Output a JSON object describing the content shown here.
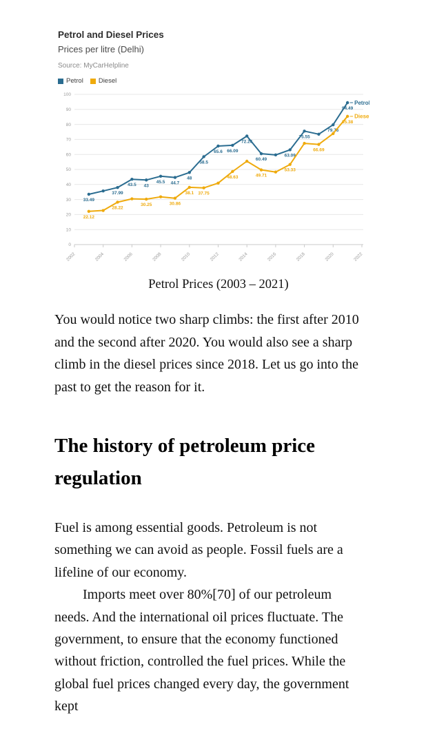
{
  "chart": {
    "title": "Petrol and Diesel Prices",
    "subtitle": "Prices per litre (Delhi)",
    "source": "Source: MyCarHelpline",
    "legend": [
      {
        "label": "Petrol",
        "color": "#2a6c90"
      },
      {
        "label": "Diesel",
        "color": "#efaa0c"
      }
    ]
  },
  "chart_data": {
    "type": "line",
    "x": [
      2003,
      2004,
      2005,
      2006,
      2007,
      2008,
      2009,
      2010,
      2011,
      2012,
      2013,
      2014,
      2015,
      2016,
      2017,
      2018,
      2019,
      2020,
      2021
    ],
    "series": [
      {
        "name": "Petrol",
        "color": "#2a6c90",
        "values": [
          33.49,
          35.7,
          37.99,
          43.5,
          43,
          45.5,
          44.7,
          48,
          58.5,
          65.6,
          66.09,
          72.26,
          60.49,
          59.7,
          63.09,
          75.55,
          73.5,
          79.76,
          94.49
        ],
        "labels": [
          "33.49",
          null,
          "37.99",
          "43.5",
          "43",
          "45.5",
          "44.7",
          "48",
          "58.5",
          "65.6",
          "66.09",
          "72.26",
          "60.49",
          null,
          "63.09",
          "75.55",
          null,
          "79.76",
          "94.49"
        ]
      },
      {
        "name": "Diesel",
        "color": "#efaa0c",
        "values": [
          22.12,
          22.7,
          28.22,
          30.45,
          30.25,
          31.8,
          30.86,
          38.1,
          37.75,
          40.9,
          48.63,
          55.5,
          49.71,
          48.3,
          53.33,
          67.4,
          66.69,
          73.9,
          85.38
        ],
        "labels": [
          "22.12",
          null,
          "28.22",
          null,
          "30.25",
          null,
          "30.86",
          "38.1",
          "37.75",
          null,
          "48.63",
          null,
          "49.71",
          null,
          "53.33",
          null,
          "66.69",
          null,
          "85.38"
        ]
      }
    ],
    "xticks": [
      2002,
      2004,
      2006,
      2008,
      2010,
      2012,
      2014,
      2016,
      2018,
      2020,
      2022
    ],
    "yticks": [
      0,
      10,
      20,
      30,
      40,
      50,
      60,
      70,
      80,
      90,
      100
    ],
    "xlim": [
      2002,
      2022
    ],
    "ylim": [
      0,
      100
    ],
    "grid": "horizontal",
    "legend_position": "top",
    "end_labels": true,
    "colors": {
      "grid": "#e7e7e7",
      "axis_line": "#c9c9c9",
      "tick_text": "#9b9b9b"
    }
  },
  "caption": "Petrol Prices (2003 – 2021)",
  "article": {
    "para1": "You would notice two sharp climbs: the first after 2010 and the second after 2020. You would also see a sharp climb in the diesel prices since 2018. Let us go into the past to get the reason for it.",
    "heading": "The history of petroleum price regulation",
    "para2": "Fuel is among essential goods. Petroleum is not something we can avoid as people. Fossil fuels are a lifeline of our economy.",
    "para3": "Imports meet over 80%[70] of our petroleum needs. And the international oil prices fluctuate. The government, to ensure that the economy functioned without friction, controlled the fuel prices. While the global fuel prices changed every day, the government kept"
  }
}
